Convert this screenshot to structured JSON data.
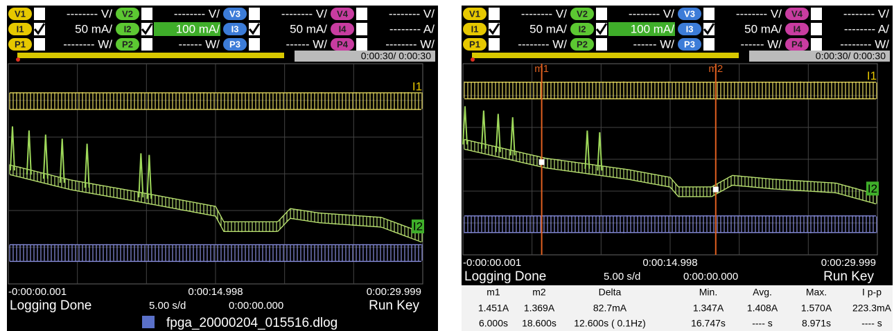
{
  "channels": [
    {
      "v_label": "V1",
      "v_scale": "-------- V/",
      "i_label": "I1",
      "i_scale": "50 mA/",
      "i_checked": true,
      "p_label": "P1",
      "p_scale": "-------- W/",
      "color": "#e6c800"
    },
    {
      "v_label": "V2",
      "v_scale": "-------- V/",
      "i_label": "I2",
      "i_scale": "100 mA/",
      "i_checked": true,
      "p_label": "P2",
      "p_scale": "------ W/",
      "color": "#5cc832"
    },
    {
      "v_label": "V3",
      "v_scale": "-------- V/",
      "i_label": "I3",
      "i_scale": "50 mA/",
      "i_checked": true,
      "p_label": "P3",
      "p_scale": "------ W/",
      "color": "#3c7cd8"
    },
    {
      "v_label": "V4",
      "v_scale": "-------- V/",
      "i_label": "I4",
      "i_scale": "-------- A/",
      "i_checked": false,
      "p_label": "P4",
      "p_scale": "-------- W/",
      "color": "#c83ca0"
    }
  ],
  "time_progress": "0:00:30/ 0:00:30",
  "trace_labels": [
    "I1",
    "I2"
  ],
  "time_axis": [
    "-0:00:00.001",
    "0:00:14.998",
    "0:00:29.999"
  ],
  "status": {
    "state": "Logging Done",
    "timebase": "5.00 s/d",
    "offset": "0:00:00.000",
    "trigger": "Run Key"
  },
  "file": "fpga_20000204_015516.dlog",
  "markers": [
    "m1",
    "m2"
  ],
  "marker_table": {
    "header": [
      "m1",
      "m2",
      "Delta",
      "Min.",
      "Avg.",
      "Max.",
      "I p-p"
    ],
    "rows": [
      [
        "1.451A",
        "1.369A",
        "82.7mA",
        "1.347A",
        "1.408A",
        "1.570A",
        "223.3mA"
      ],
      [
        "6.000s",
        "18.600s",
        "12.600s ( 0.1Hz)",
        "16.747s",
        "---- s",
        "8.971s",
        "---- s"
      ]
    ]
  }
}
